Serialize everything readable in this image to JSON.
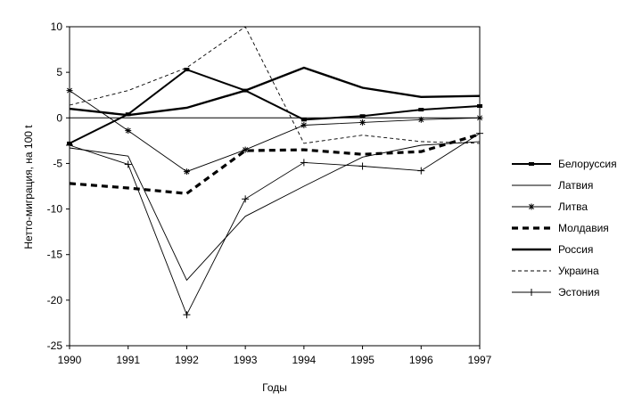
{
  "chart_data": {
    "type": "line",
    "title": "",
    "xlabel": "Годы",
    "ylabel": "Нетто-миграция, на 100 t",
    "x": [
      1990,
      1991,
      1992,
      1993,
      1994,
      1995,
      1996,
      1997
    ],
    "ylim": [
      -25,
      10
    ],
    "yticks": [
      10,
      5,
      0,
      -5,
      -10,
      -15,
      -20,
      -25
    ],
    "grid": false,
    "legend_position": "right",
    "series": [
      {
        "name": "Белоруссия",
        "style": "thick-square-markers",
        "values": [
          -2.8,
          0.4,
          5.3,
          3.0,
          -0.2,
          0.2,
          0.9,
          1.3
        ]
      },
      {
        "name": "Латвия",
        "style": "thin",
        "values": [
          -3.3,
          -4.2,
          -17.8,
          -10.8,
          -7.5,
          -4.3,
          -3.0,
          -2.6
        ]
      },
      {
        "name": "Литва",
        "style": "star-markers",
        "values": [
          3.0,
          -1.4,
          -5.9,
          -3.5,
          -0.8,
          -0.5,
          -0.2,
          0.0
        ]
      },
      {
        "name": "Молдавия",
        "style": "thick-dashed",
        "values": [
          -7.2,
          -7.7,
          -8.3,
          -3.6,
          -3.5,
          -4.0,
          -3.7,
          -1.8
        ]
      },
      {
        "name": "Россия",
        "style": "thick",
        "values": [
          1.0,
          0.3,
          1.1,
          3.0,
          5.5,
          3.3,
          2.3,
          2.4
        ]
      },
      {
        "name": "Украина",
        "style": "thin-dashed",
        "values": [
          1.4,
          3.0,
          5.5,
          10.0,
          -2.8,
          -1.9,
          -2.6,
          -2.8
        ]
      },
      {
        "name": "Эстония",
        "style": "plus-markers",
        "values": [
          -3.0,
          -5.1,
          -21.6,
          -8.9,
          -4.9,
          -5.3,
          -5.8,
          -1.7
        ]
      }
    ]
  }
}
